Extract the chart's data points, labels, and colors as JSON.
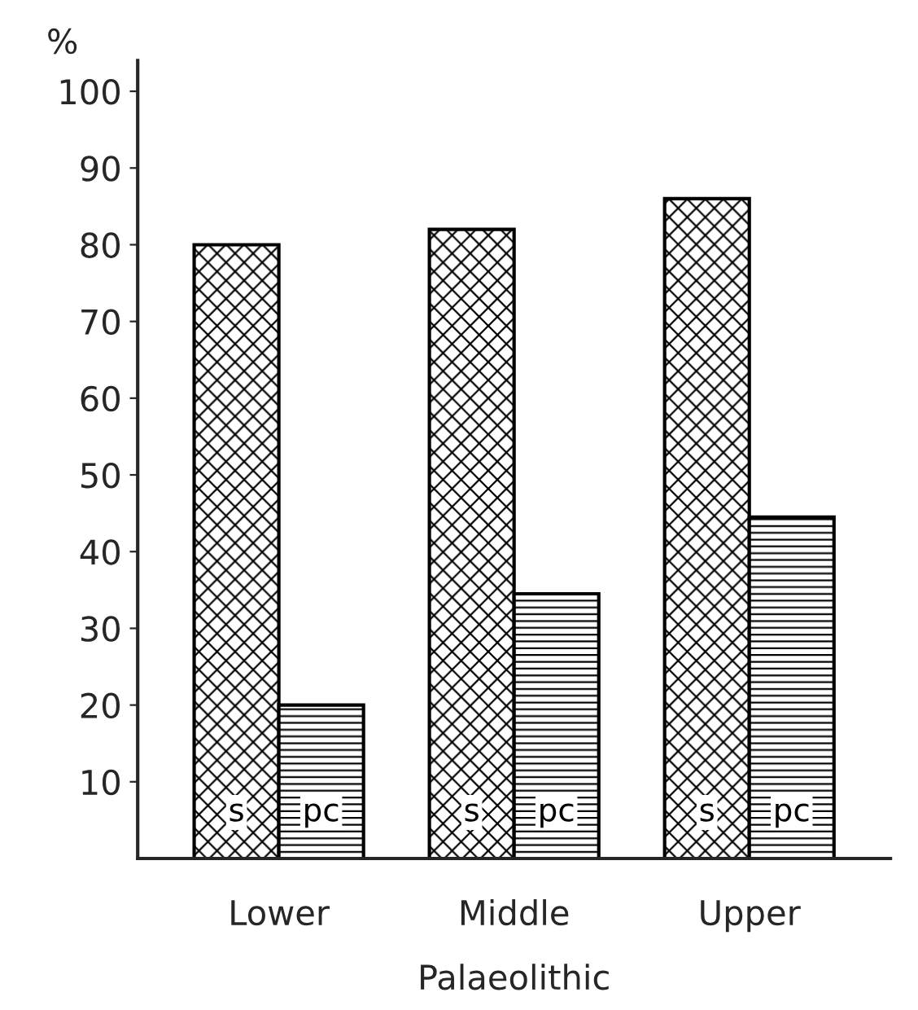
{
  "chart_data": {
    "type": "bar",
    "xlabel": "Palaeolithic",
    "ylabel": "%",
    "categories": [
      "Lower",
      "Middle",
      "Upper"
    ],
    "series": [
      {
        "name": "s",
        "color": "#000000",
        "values": [
          80,
          82,
          86
        ]
      },
      {
        "name": "pc",
        "color": "#000000",
        "values": [
          20,
          34.5,
          44.5
        ]
      }
    ],
    "ylim": [
      0,
      104
    ],
    "yticks": [
      10,
      20,
      30,
      40,
      50,
      60,
      70,
      80,
      90,
      100
    ],
    "grid": false,
    "legend": false
  }
}
